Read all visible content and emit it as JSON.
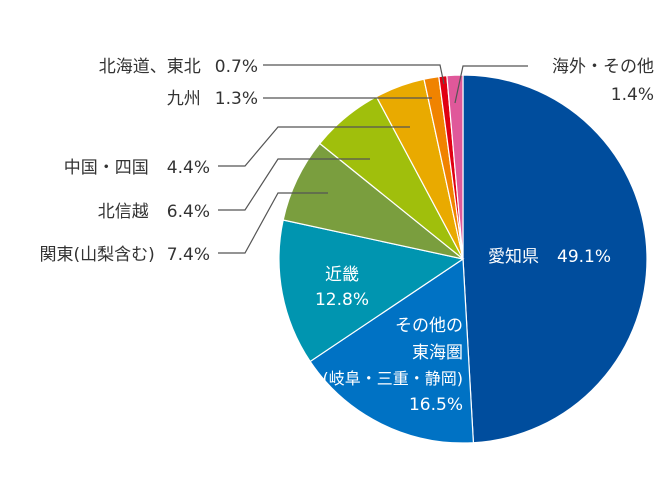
{
  "chart_data": {
    "type": "pie",
    "title": "",
    "start": "top",
    "direction": "clockwise",
    "slices": [
      {
        "name": "愛知県",
        "value": 49.1,
        "label": "49.1%",
        "color": "#004d9d"
      },
      {
        "name": "その他の東海圏（岐阜・三重・静岡）",
        "lines": [
          "その他の",
          "東海圏",
          "(岐阜・三重・静岡)"
        ],
        "value": 16.5,
        "label": "16.5%",
        "color": "#0072c4"
      },
      {
        "name": "近畿",
        "value": 12.8,
        "label": "12.8%",
        "color": "#0095b0"
      },
      {
        "name": "関東(山梨含む)",
        "value": 7.4,
        "label": "7.4%",
        "color": "#7a9e3e"
      },
      {
        "name": "北信越",
        "value": 6.4,
        "label": "6.4%",
        "color": "#a0bf0c"
      },
      {
        "name": "中国・四国",
        "value": 4.4,
        "label": "4.4%",
        "color": "#e9aa00"
      },
      {
        "name": "九州",
        "value": 1.3,
        "label": "1.3%",
        "color": "#f08300"
      },
      {
        "name": "北海道、東北",
        "value": 0.7,
        "label": "0.7%",
        "color": "#e00012"
      },
      {
        "name": "海外・その他",
        "value": 1.4,
        "label": "1.4%",
        "color": "#e0589a"
      }
    ]
  }
}
